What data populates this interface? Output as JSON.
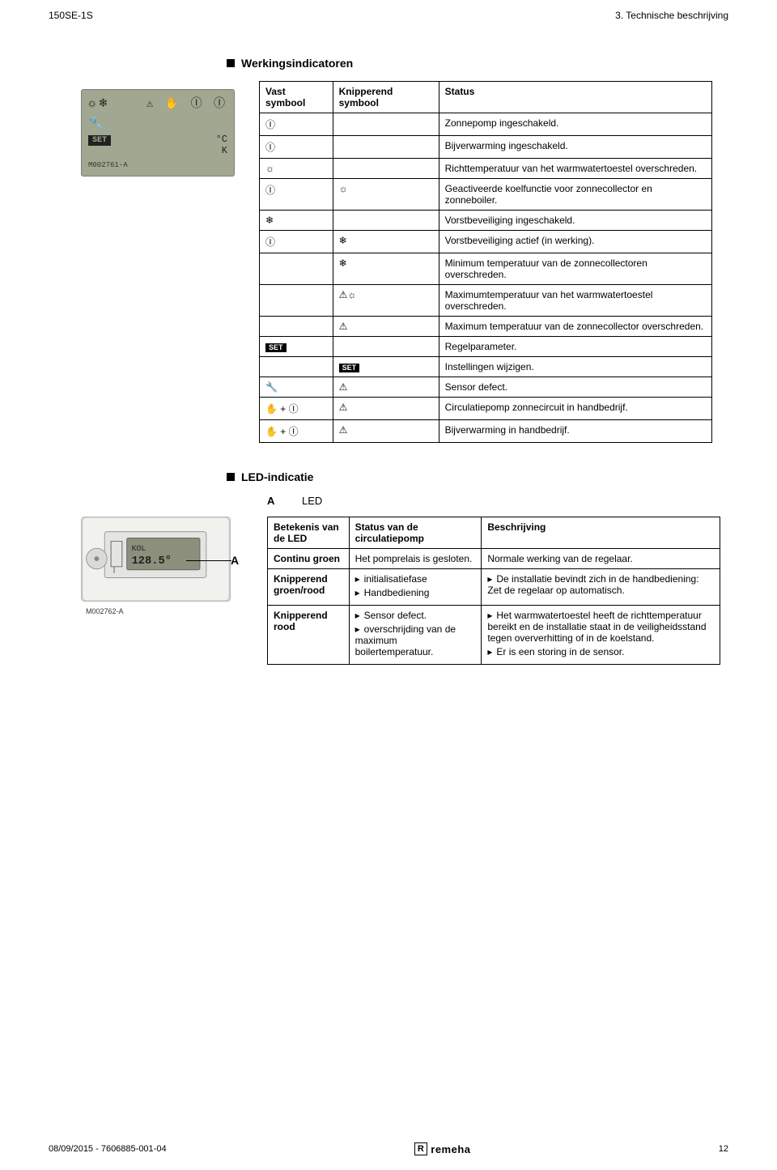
{
  "header": {
    "left": "150SE-1S",
    "right": "3. Technische beschrijving"
  },
  "section1_title": "Werkingsindicatoren",
  "lcd": {
    "sun": "☼",
    "snow": "❄",
    "warn": "⚠",
    "hand": "✋",
    "two": "Ⓘ",
    "one": "Ⓘ",
    "wrench": "🔧",
    "set_label": "SET",
    "deg": "°C",
    "k": "K",
    "model": "M002761-A"
  },
  "sym_table": {
    "headers": [
      "Vast symbool",
      "Knipperend symbool",
      "Status"
    ],
    "rows": [
      {
        "fixed": "Ⓘ",
        "blink": "",
        "status": "Zonnepomp ingeschakeld."
      },
      {
        "fixed": "Ⓘ",
        "blink": "",
        "status": "Bijverwarming ingeschakeld."
      },
      {
        "fixed": "☼",
        "blink": "",
        "status": "Richttemperatuur van het warmwatertoestel overschreden."
      },
      {
        "fixed": "Ⓘ",
        "blink": "☼",
        "status": "Geactiveerde koelfunctie voor zonnecollector en zonneboiler."
      },
      {
        "fixed": "❄",
        "blink": "",
        "status": "Vorstbeveiliging ingeschakeld."
      },
      {
        "fixed": "Ⓘ",
        "blink": "❄",
        "status": "Vorstbeveiliging actief (in werking)."
      },
      {
        "fixed": "",
        "blink": "❄",
        "status": "Minimum temperatuur van de zonnecollectoren overschreden."
      },
      {
        "fixed": "",
        "blink": "⚠☼",
        "status": "Maximumtemperatuur van het warmwatertoestel overschreden."
      },
      {
        "fixed": "",
        "blink": "⚠",
        "status": "Maximum temperatuur van de zonnecollector overschreden."
      },
      {
        "fixed": "SET",
        "blink": "",
        "status": "Regelparameter.",
        "fixed_is_set": true
      },
      {
        "fixed": "",
        "blink": "SET",
        "status": "Instellingen wijzigen.",
        "blink_is_set": true
      },
      {
        "fixed": "🔧",
        "blink": "⚠",
        "status": "Sensor defect."
      },
      {
        "fixed": "✋ + Ⓘ",
        "blink": "⚠",
        "status": "Circulatiepomp zonnecircuit in handbedrijf."
      },
      {
        "fixed": "✋ + Ⓘ",
        "blink": "⚠",
        "status": "Bijverwarming in handbedrijf."
      }
    ]
  },
  "section2_title": "LED-indicatie",
  "led_legend": {
    "key": "A",
    "val": "LED"
  },
  "device_label": "M002762-A",
  "callout": "A",
  "device_lcd_text1": "KOL",
  "device_lcd_text2": "128.5°",
  "led_table": {
    "headers": [
      "Betekenis van de LED",
      "Status van de circulatiepomp",
      "Beschrijving"
    ],
    "rows": [
      {
        "m": "Continu groen",
        "s_text": "Het pomprelais is gesloten.",
        "s_items": [],
        "d_text": "Normale werking van de regelaar.",
        "d_items": []
      },
      {
        "m": "Knipperend groen/rood",
        "s_text": "",
        "s_items": [
          "initialisatiefase",
          "Handbediening"
        ],
        "d_text": "",
        "d_items": [
          "De installatie bevindt zich in de handbediening: Zet de regelaar op automatisch."
        ]
      },
      {
        "m": "Knipperend rood",
        "s_text": "",
        "s_items": [
          "Sensor defect.",
          "overschrijding van de maximum boilertemperatuur."
        ],
        "d_text": "",
        "d_items": [
          "Het warmwatertoestel heeft de richttemperatuur bereikt en de installatie staat in de veiligheidsstand tegen oververhitting of in de koelstand.",
          "Er is een storing in de sensor."
        ]
      }
    ]
  },
  "footer": {
    "left": "08/09/2015 - 7606885-001-04",
    "logo_r": "R",
    "logo_text": "remeha",
    "page": "12"
  }
}
